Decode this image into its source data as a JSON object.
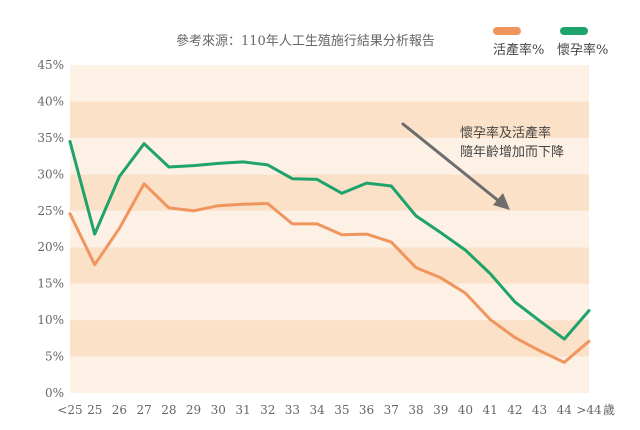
{
  "chart_data": {
    "type": "line",
    "source_note": "參考來源：110年人工生殖施行結果分析報告",
    "x_unit": "歲",
    "categories": [
      "<25",
      "25",
      "26",
      "27",
      "28",
      "29",
      "30",
      "31",
      "32",
      "33",
      "34",
      "35",
      "36",
      "37",
      "38",
      "39",
      "40",
      "41",
      "42",
      "43",
      "44",
      ">44"
    ],
    "series": [
      {
        "name": "活產率%",
        "color": "#f0955e",
        "values": [
          24.6,
          17.6,
          22.6,
          28.7,
          25.4,
          25.0,
          25.7,
          25.9,
          26.0,
          23.2,
          23.2,
          21.7,
          21.8,
          20.7,
          17.2,
          15.8,
          13.7,
          10.1,
          7.6,
          5.8,
          4.2,
          7.1
        ]
      },
      {
        "name": "懷孕率%",
        "color": "#1ea36a",
        "values": [
          34.5,
          21.8,
          29.7,
          34.2,
          31.0,
          31.2,
          31.5,
          31.7,
          31.3,
          29.4,
          29.3,
          27.4,
          28.8,
          28.4,
          24.3,
          22.0,
          19.6,
          16.4,
          12.5,
          9.9,
          7.4,
          11.3
        ]
      }
    ],
    "y_ticks": [
      "0%",
      "5%",
      "10%",
      "15%",
      "20%",
      "25%",
      "30%",
      "35%",
      "40%",
      "45%"
    ],
    "ylim": [
      0,
      45
    ],
    "annotation": [
      "懷孕率及活產率",
      "隨年齡增加而下降"
    ],
    "legend_position": "top-right",
    "band_colors": [
      "#fdf1e6",
      "#fbe1c8"
    ]
  }
}
